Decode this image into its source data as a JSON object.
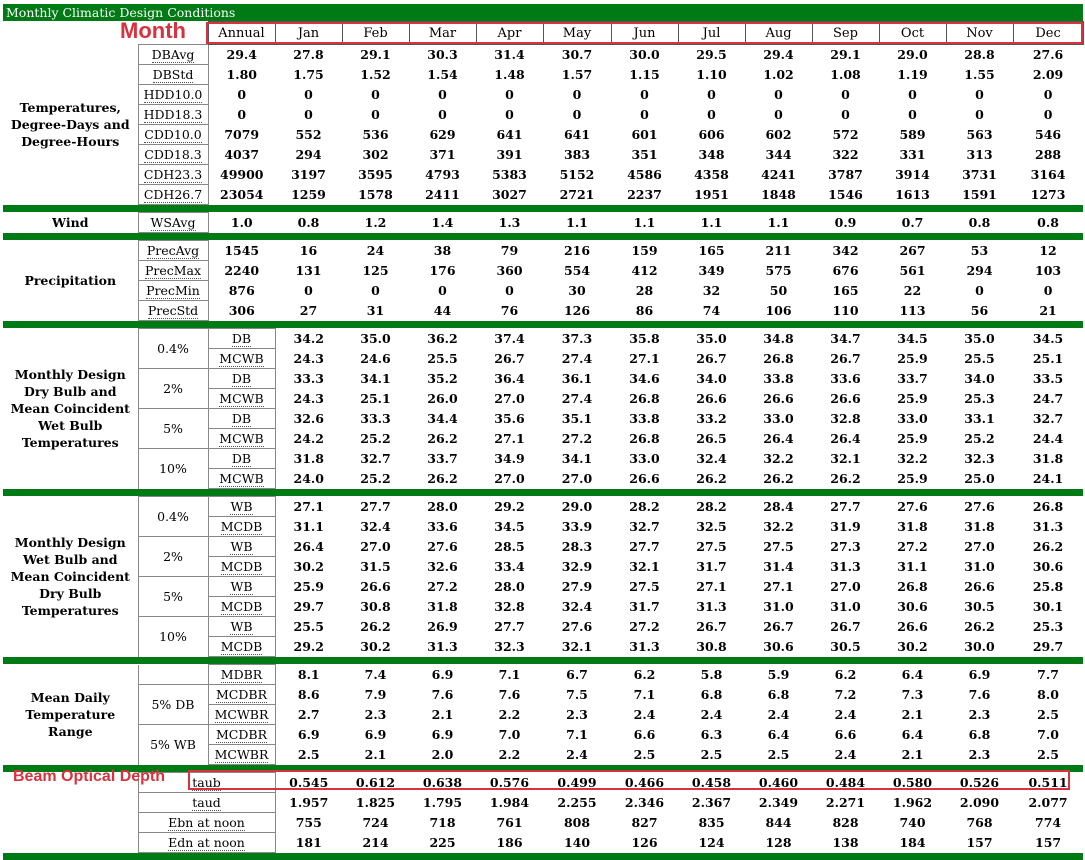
{
  "title": "Monthly Climatic Design Conditions",
  "annotations": {
    "month": "Month",
    "beam": "Beam Optical Depth"
  },
  "columns": [
    "Annual",
    "Jan",
    "Feb",
    "Mar",
    "Apr",
    "May",
    "Jun",
    "Jul",
    "Aug",
    "Sep",
    "Oct",
    "Nov",
    "Dec"
  ],
  "sections": {
    "temp": {
      "label": "Temperatures, Degree-Days and Degree-Hours",
      "rows": [
        {
          "code": "DBAvg",
          "values": [
            "29.4",
            "27.8",
            "29.1",
            "30.3",
            "31.4",
            "30.7",
            "30.0",
            "29.5",
            "29.4",
            "29.1",
            "29.0",
            "28.8",
            "27.6"
          ]
        },
        {
          "code": "DBStd",
          "values": [
            "1.80",
            "1.75",
            "1.52",
            "1.54",
            "1.48",
            "1.57",
            "1.15",
            "1.10",
            "1.02",
            "1.08",
            "1.19",
            "1.55",
            "2.09"
          ]
        },
        {
          "code": "HDD10.0",
          "values": [
            "0",
            "0",
            "0",
            "0",
            "0",
            "0",
            "0",
            "0",
            "0",
            "0",
            "0",
            "0",
            "0"
          ]
        },
        {
          "code": "HDD18.3",
          "values": [
            "0",
            "0",
            "0",
            "0",
            "0",
            "0",
            "0",
            "0",
            "0",
            "0",
            "0",
            "0",
            "0"
          ]
        },
        {
          "code": "CDD10.0",
          "values": [
            "7079",
            "552",
            "536",
            "629",
            "641",
            "641",
            "601",
            "606",
            "602",
            "572",
            "589",
            "563",
            "546"
          ]
        },
        {
          "code": "CDD18.3",
          "values": [
            "4037",
            "294",
            "302",
            "371",
            "391",
            "383",
            "351",
            "348",
            "344",
            "322",
            "331",
            "313",
            "288"
          ]
        },
        {
          "code": "CDH23.3",
          "values": [
            "49900",
            "3197",
            "3595",
            "4793",
            "5383",
            "5152",
            "4586",
            "4358",
            "4241",
            "3787",
            "3914",
            "3731",
            "3164"
          ]
        },
        {
          "code": "CDH26.7",
          "values": [
            "23054",
            "1259",
            "1578",
            "2411",
            "3027",
            "2721",
            "2237",
            "1951",
            "1848",
            "1546",
            "1613",
            "1591",
            "1273"
          ]
        }
      ]
    },
    "wind": {
      "label": "Wind",
      "rows": [
        {
          "code": "WSAvg",
          "values": [
            "1.0",
            "0.8",
            "1.2",
            "1.4",
            "1.3",
            "1.1",
            "1.1",
            "1.1",
            "1.1",
            "0.9",
            "0.7",
            "0.8",
            "0.8"
          ]
        }
      ]
    },
    "precip": {
      "label": "Precipitation",
      "rows": [
        {
          "code": "PrecAvg",
          "values": [
            "1545",
            "16",
            "24",
            "38",
            "79",
            "216",
            "159",
            "165",
            "211",
            "342",
            "267",
            "53",
            "12"
          ]
        },
        {
          "code": "PrecMax",
          "values": [
            "2240",
            "131",
            "125",
            "176",
            "360",
            "554",
            "412",
            "349",
            "575",
            "676",
            "561",
            "294",
            "103"
          ]
        },
        {
          "code": "PrecMin",
          "values": [
            "876",
            "0",
            "0",
            "0",
            "0",
            "30",
            "28",
            "32",
            "50",
            "165",
            "22",
            "0",
            "0"
          ]
        },
        {
          "code": "PrecStd",
          "values": [
            "306",
            "27",
            "31",
            "44",
            "76",
            "126",
            "86",
            "74",
            "106",
            "110",
            "113",
            "56",
            "21"
          ]
        }
      ]
    },
    "mddb": {
      "label": "Monthly Design Dry Bulb and Mean Coincident Wet Bulb Temperatures",
      "groups": [
        {
          "pct": "0.4%",
          "rows": [
            {
              "code": "DB",
              "values": [
                "34.2",
                "35.0",
                "36.2",
                "37.4",
                "37.3",
                "35.8",
                "35.0",
                "34.8",
                "34.7",
                "34.5",
                "35.0",
                "34.5"
              ]
            },
            {
              "code": "MCWB",
              "values": [
                "24.3",
                "24.6",
                "25.5",
                "26.7",
                "27.4",
                "27.1",
                "26.7",
                "26.8",
                "26.7",
                "25.9",
                "25.5",
                "25.1"
              ]
            }
          ]
        },
        {
          "pct": "2%",
          "rows": [
            {
              "code": "DB",
              "values": [
                "33.3",
                "34.1",
                "35.2",
                "36.4",
                "36.1",
                "34.6",
                "34.0",
                "33.8",
                "33.6",
                "33.7",
                "34.0",
                "33.5"
              ]
            },
            {
              "code": "MCWB",
              "values": [
                "24.3",
                "25.1",
                "26.0",
                "27.0",
                "27.4",
                "26.8",
                "26.6",
                "26.6",
                "26.6",
                "25.9",
                "25.3",
                "24.7"
              ]
            }
          ]
        },
        {
          "pct": "5%",
          "rows": [
            {
              "code": "DB",
              "values": [
                "32.6",
                "33.3",
                "34.4",
                "35.6",
                "35.1",
                "33.8",
                "33.2",
                "33.0",
                "32.8",
                "33.0",
                "33.1",
                "32.7"
              ]
            },
            {
              "code": "MCWB",
              "values": [
                "24.2",
                "25.2",
                "26.2",
                "27.1",
                "27.2",
                "26.8",
                "26.5",
                "26.4",
                "26.4",
                "25.9",
                "25.2",
                "24.4"
              ]
            }
          ]
        },
        {
          "pct": "10%",
          "rows": [
            {
              "code": "DB",
              "values": [
                "31.8",
                "32.7",
                "33.7",
                "34.9",
                "34.1",
                "33.0",
                "32.4",
                "32.2",
                "32.1",
                "32.2",
                "32.3",
                "31.8"
              ]
            },
            {
              "code": "MCWB",
              "values": [
                "24.0",
                "25.2",
                "26.2",
                "27.0",
                "27.0",
                "26.6",
                "26.2",
                "26.2",
                "26.2",
                "25.9",
                "25.0",
                "24.1"
              ]
            }
          ]
        }
      ]
    },
    "mdwb": {
      "label": "Monthly Design Wet Bulb and Mean Coincident Dry Bulb Temperatures",
      "groups": [
        {
          "pct": "0.4%",
          "rows": [
            {
              "code": "WB",
              "values": [
                "27.1",
                "27.7",
                "28.0",
                "29.2",
                "29.0",
                "28.2",
                "28.2",
                "28.4",
                "27.7",
                "27.6",
                "27.6",
                "26.8"
              ]
            },
            {
              "code": "MCDB",
              "values": [
                "31.1",
                "32.4",
                "33.6",
                "34.5",
                "33.9",
                "32.7",
                "32.5",
                "32.2",
                "31.9",
                "31.8",
                "31.8",
                "31.3"
              ]
            }
          ]
        },
        {
          "pct": "2%",
          "rows": [
            {
              "code": "WB",
              "values": [
                "26.4",
                "27.0",
                "27.6",
                "28.5",
                "28.3",
                "27.7",
                "27.5",
                "27.5",
                "27.3",
                "27.2",
                "27.0",
                "26.2"
              ]
            },
            {
              "code": "MCDB",
              "values": [
                "30.2",
                "31.5",
                "32.6",
                "33.4",
                "32.9",
                "32.1",
                "31.7",
                "31.4",
                "31.3",
                "31.1",
                "31.0",
                "30.6"
              ]
            }
          ]
        },
        {
          "pct": "5%",
          "rows": [
            {
              "code": "WB",
              "values": [
                "25.9",
                "26.6",
                "27.2",
                "28.0",
                "27.9",
                "27.5",
                "27.1",
                "27.1",
                "27.0",
                "26.8",
                "26.6",
                "25.8"
              ]
            },
            {
              "code": "MCDB",
              "values": [
                "29.7",
                "30.8",
                "31.8",
                "32.8",
                "32.4",
                "31.7",
                "31.3",
                "31.0",
                "31.0",
                "30.6",
                "30.5",
                "30.1"
              ]
            }
          ]
        },
        {
          "pct": "10%",
          "rows": [
            {
              "code": "WB",
              "values": [
                "25.5",
                "26.2",
                "26.9",
                "27.7",
                "27.6",
                "27.2",
                "26.7",
                "26.7",
                "26.7",
                "26.6",
                "26.2",
                "25.3"
              ]
            },
            {
              "code": "MCDB",
              "values": [
                "29.2",
                "30.2",
                "31.3",
                "32.3",
                "32.1",
                "31.3",
                "30.8",
                "30.6",
                "30.5",
                "30.2",
                "30.0",
                "29.7"
              ]
            }
          ]
        }
      ]
    },
    "range": {
      "label": "Mean Daily Temperature Range",
      "mdbr": {
        "code": "MDBR",
        "values": [
          "8.1",
          "7.4",
          "6.9",
          "7.1",
          "6.7",
          "6.2",
          "5.8",
          "5.9",
          "6.2",
          "6.4",
          "6.9",
          "7.7"
        ]
      },
      "groups": [
        {
          "pct": "5% DB",
          "rows": [
            {
              "code": "MCDBR",
              "values": [
                "8.6",
                "7.9",
                "7.6",
                "7.6",
                "7.5",
                "7.1",
                "6.8",
                "6.8",
                "7.2",
                "7.3",
                "7.6",
                "8.0"
              ]
            },
            {
              "code": "MCWBR",
              "values": [
                "2.7",
                "2.3",
                "2.1",
                "2.2",
                "2.3",
                "2.4",
                "2.4",
                "2.4",
                "2.4",
                "2.1",
                "2.3",
                "2.5"
              ]
            }
          ]
        },
        {
          "pct": "5% WB",
          "rows": [
            {
              "code": "MCDBR",
              "values": [
                "6.9",
                "6.9",
                "6.9",
                "7.0",
                "7.1",
                "6.6",
                "6.3",
                "6.4",
                "6.6",
                "6.4",
                "6.8",
                "7.0"
              ]
            },
            {
              "code": "MCWBR",
              "values": [
                "2.5",
                "2.1",
                "2.0",
                "2.2",
                "2.4",
                "2.5",
                "2.5",
                "2.5",
                "2.4",
                "2.1",
                "2.3",
                "2.5"
              ]
            }
          ]
        }
      ]
    },
    "solar": {
      "rows": [
        {
          "code": "taub",
          "values": [
            "0.545",
            "0.612",
            "0.638",
            "0.576",
            "0.499",
            "0.466",
            "0.458",
            "0.460",
            "0.484",
            "0.580",
            "0.526",
            "0.511"
          ]
        },
        {
          "code": "taud",
          "values": [
            "1.957",
            "1.825",
            "1.795",
            "1.984",
            "2.255",
            "2.346",
            "2.367",
            "2.349",
            "2.271",
            "1.962",
            "2.090",
            "2.077"
          ]
        },
        {
          "code": "Ebn at noon",
          "values": [
            "755",
            "724",
            "718",
            "761",
            "808",
            "827",
            "835",
            "844",
            "828",
            "740",
            "768",
            "774"
          ]
        },
        {
          "code": "Edn at noon",
          "values": [
            "181",
            "214",
            "225",
            "186",
            "140",
            "126",
            "124",
            "128",
            "138",
            "184",
            "157",
            "157"
          ]
        }
      ]
    }
  }
}
